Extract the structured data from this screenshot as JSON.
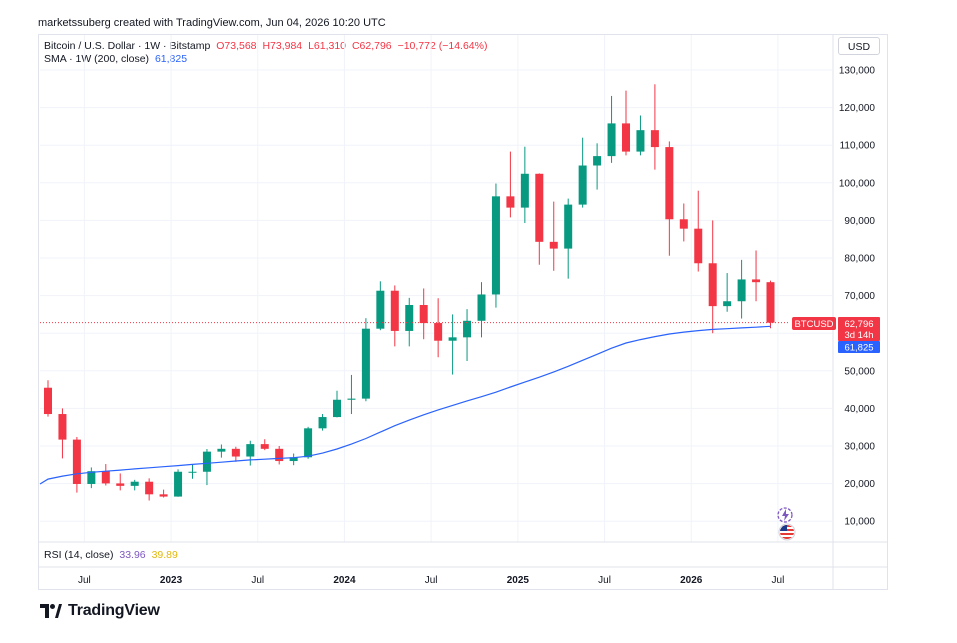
{
  "header": {
    "credit": "marketssuberg created with TradingView.com, Jun 04, 2026 10:20 UTC"
  },
  "legend": {
    "symbol": "Bitcoin / U.S. Dollar · 1W · Bitstamp",
    "open": "O73,568",
    "high": "H73,984",
    "low": "L61,310",
    "close": "C62,796",
    "change": "−10,772 (−14.64%)",
    "sma_label": "SMA · 1W (200, close)",
    "sma_value": "61,825"
  },
  "rsi_legend": {
    "label": "RSI (14, close)",
    "value1": "33.96",
    "value2": "39.89"
  },
  "currency_button": "USD",
  "price_tags": {
    "symbol": "BTCUSD",
    "price": "62,796",
    "countdown": "3d 14h",
    "sma": "61,825"
  },
  "brand": "TradingView",
  "colors": {
    "up": "#089981",
    "down": "#f23645",
    "sma": "#2962ff"
  },
  "chart_data": {
    "type": "candlestick",
    "y_axis_labels": [
      "130,000",
      "120,000",
      "110,000",
      "100,000",
      "90,000",
      "80,000",
      "70,000",
      "60,000",
      "50,000",
      "40,000",
      "30,000",
      "20,000",
      "10,000"
    ],
    "x_axis_labels": [
      "Jul",
      "2023",
      "Jul",
      "2024",
      "Jul",
      "2025",
      "Jul",
      "2026",
      "Jul"
    ],
    "ylim": [
      0,
      132000
    ],
    "x": [
      "2022-04",
      "2022-05",
      "2022-06",
      "2022-07",
      "2022-08",
      "2022-09",
      "2022-10",
      "2022-11",
      "2022-12",
      "2023-01",
      "2023-02",
      "2023-03",
      "2023-04",
      "2023-05",
      "2023-06",
      "2023-07",
      "2023-08",
      "2023-09",
      "2023-10",
      "2023-11",
      "2023-12",
      "2024-01",
      "2024-02",
      "2024-03",
      "2024-04",
      "2024-05",
      "2024-06",
      "2024-07",
      "2024-08",
      "2024-09",
      "2024-10",
      "2024-11",
      "2024-12",
      "2025-01",
      "2025-02",
      "2025-03",
      "2025-04",
      "2025-05",
      "2025-06",
      "2025-07",
      "2025-08",
      "2025-09",
      "2025-10",
      "2025-11",
      "2025-12",
      "2026-01",
      "2026-02",
      "2026-03",
      "2026-04",
      "2026-05",
      "2026-06"
    ],
    "series": [
      {
        "name": "Bitcoin / U.S. Dollar",
        "open": [
          45500,
          38500,
          31700,
          19900,
          23300,
          20050,
          19400,
          20500,
          17150,
          16550,
          23150,
          23150,
          28500,
          29250,
          27200,
          30500,
          29250,
          26000,
          27000,
          34700,
          37700,
          42300,
          42600,
          61200,
          71300,
          60600,
          67500,
          62700,
          58000,
          58900,
          63300,
          70300,
          96400,
          93400,
          102400,
          84300,
          82500,
          94200,
          104600,
          107100,
          115800,
          108300,
          114000,
          109500,
          90300,
          87800,
          78600,
          67200,
          68500,
          74300,
          73568
        ],
        "high": [
          47500,
          40000,
          32400,
          24300,
          25200,
          22700,
          21000,
          21400,
          18400,
          23800,
          25200,
          29200,
          30400,
          29800,
          31400,
          31800,
          30000,
          28000,
          35100,
          38500,
          44700,
          48900,
          64000,
          73800,
          72700,
          69400,
          71900,
          69300,
          65000,
          66400,
          73600,
          99800,
          108300,
          109600,
          102500,
          95000,
          95800,
          112000,
          110500,
          123100,
          124500,
          117900,
          126200,
          111000,
          94500,
          97900,
          90000,
          76000,
          79500,
          82000,
          73984
        ],
        "low": [
          37800,
          26700,
          17600,
          18800,
          19500,
          18200,
          18200,
          15500,
          16300,
          16500,
          21300,
          19600,
          26900,
          25800,
          24800,
          28900,
          25100,
          24900,
          26600,
          34100,
          37600,
          38500,
          41900,
          60800,
          56500,
          56500,
          58400,
          53600,
          49000,
          52600,
          58900,
          66800,
          90800,
          89300,
          78200,
          76600,
          74500,
          93400,
          98200,
          105300,
          107300,
          107300,
          103500,
          80600,
          84400,
          76400,
          60000,
          65700,
          63900,
          68500,
          61310
        ],
        "close": [
          38500,
          31700,
          19900,
          23300,
          20050,
          19400,
          20500,
          17150,
          16550,
          23150,
          23150,
          28500,
          29250,
          27200,
          30500,
          29250,
          26000,
          27000,
          34700,
          37700,
          42300,
          42600,
          61200,
          71300,
          60600,
          67500,
          62700,
          58000,
          58900,
          63300,
          70300,
          96400,
          93400,
          102400,
          84300,
          82500,
          94200,
          104600,
          107100,
          115800,
          108300,
          114000,
          109500,
          90300,
          87800,
          78600,
          67200,
          68500,
          74300,
          73568,
          62796
        ]
      },
      {
        "name": "SMA · 1W (200, close)",
        "values": [
          21200,
          22000,
          22600,
          23000,
          23300,
          23600,
          23900,
          24200,
          24500,
          24800,
          25100,
          25400,
          25700,
          26000,
          26300,
          26500,
          26700,
          26900,
          27300,
          28100,
          29200,
          30500,
          32000,
          33700,
          35400,
          36900,
          38300,
          39600,
          40800,
          42000,
          43100,
          44300,
          45700,
          47000,
          48300,
          49700,
          51200,
          52800,
          54400,
          56000,
          57400,
          58300,
          59100,
          59800,
          60300,
          60700,
          61000,
          61200,
          61400,
          61600,
          61825
        ]
      }
    ],
    "current_price": 62796,
    "legend_position": "top-left",
    "rsi": {
      "label": "RSI (14, close)",
      "values": [
        33.96,
        39.89
      ]
    }
  }
}
